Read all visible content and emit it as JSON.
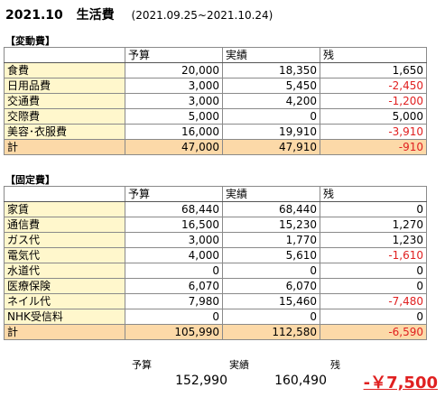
{
  "title": {
    "month": "2021.10",
    "label": "生活費",
    "period": "(2021.09.25~2021.10.24)"
  },
  "variable": {
    "section_label": "【変動費】",
    "headers": [
      "予算",
      "実績",
      "残"
    ],
    "rows": [
      {
        "cat": "食費",
        "budget": "20,000",
        "actual": "18,350",
        "rest": "1,650",
        "neg": false
      },
      {
        "cat": "日用品費",
        "budget": "3,000",
        "actual": "5,450",
        "rest": "-2,450",
        "neg": true
      },
      {
        "cat": "交通費",
        "budget": "3,000",
        "actual": "4,200",
        "rest": "-1,200",
        "neg": true
      },
      {
        "cat": "交際費",
        "budget": "5,000",
        "actual": "0",
        "rest": "5,000",
        "neg": false
      },
      {
        "cat": "美容･衣服費",
        "budget": "16,000",
        "actual": "19,910",
        "rest": "-3,910",
        "neg": true
      }
    ],
    "total": {
      "cat": "計",
      "budget": "47,000",
      "actual": "47,910",
      "rest": "-910",
      "neg": true
    }
  },
  "fixed": {
    "section_label": "【固定費】",
    "headers": [
      "予算",
      "実績",
      "残"
    ],
    "rows": [
      {
        "cat": "家賃",
        "budget": "68,440",
        "actual": "68,440",
        "rest": "0",
        "neg": false
      },
      {
        "cat": "通信費",
        "budget": "16,500",
        "actual": "15,230",
        "rest": "1,270",
        "neg": false
      },
      {
        "cat": "ガス代",
        "budget": "3,000",
        "actual": "1,770",
        "rest": "1,230",
        "neg": false
      },
      {
        "cat": "電気代",
        "budget": "4,000",
        "actual": "5,610",
        "rest": "-1,610",
        "neg": true
      },
      {
        "cat": "水道代",
        "budget": "0",
        "actual": "0",
        "rest": "0",
        "neg": false
      },
      {
        "cat": "医療保険",
        "budget": "6,070",
        "actual": "6,070",
        "rest": "0",
        "neg": false
      },
      {
        "cat": "ネイル代",
        "budget": "7,980",
        "actual": "15,460",
        "rest": "-7,480",
        "neg": true
      },
      {
        "cat": "NHK受信料",
        "budget": "0",
        "actual": "0",
        "rest": "0",
        "neg": false
      }
    ],
    "total": {
      "cat": "計",
      "budget": "105,990",
      "actual": "112,580",
      "rest": "-6,590",
      "neg": true
    }
  },
  "summary": {
    "budget_label": "予算",
    "actual_label": "実績",
    "rest_label": "残",
    "budget": "152,990",
    "actual": "160,490",
    "rest": "-￥7,500"
  },
  "colors": {
    "category_bg": "#fff7cc",
    "total_bg": "#fcd9a8",
    "negative": "#e02020"
  }
}
